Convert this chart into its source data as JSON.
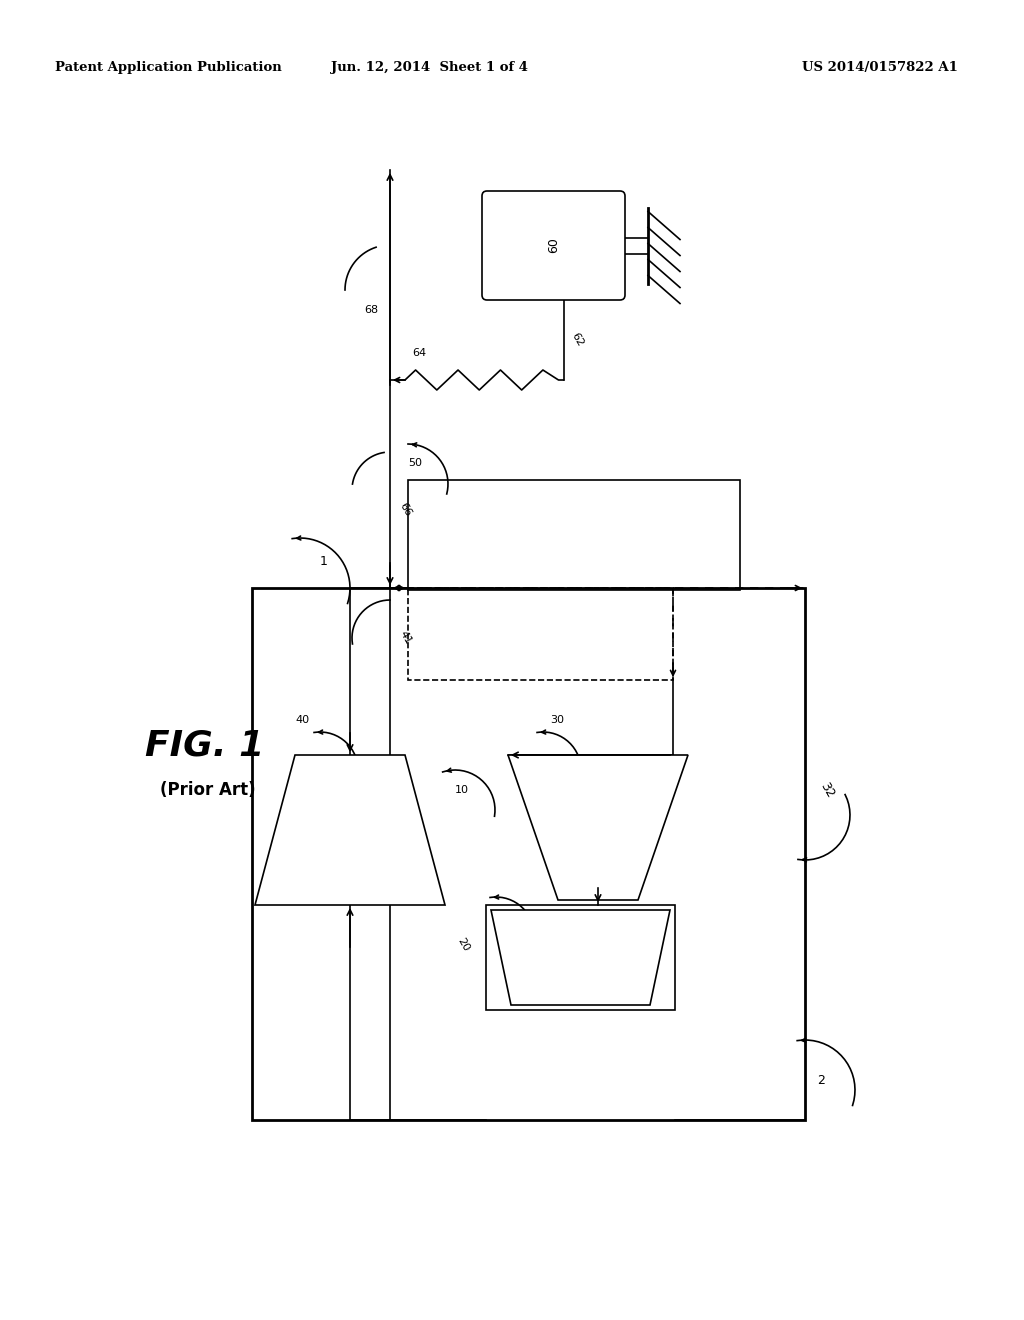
{
  "header_left": "Patent Application Publication",
  "header_mid": "Jun. 12, 2014  Sheet 1 of 4",
  "header_right": "US 2014/0157822 A1",
  "fig_label": "FIG. 1",
  "fig_sublabel": "(Prior Art)",
  "bg_color": "#ffffff",
  "line_color": "#000000",
  "label_1": "1",
  "label_2": "2",
  "label_10": "10",
  "label_20": "20",
  "label_30": "30",
  "label_32": "32",
  "label_40": "40",
  "label_41": "41",
  "label_50": "50",
  "label_60": "60",
  "label_62": "62",
  "label_64": "64",
  "label_66": "66",
  "label_68": "68"
}
